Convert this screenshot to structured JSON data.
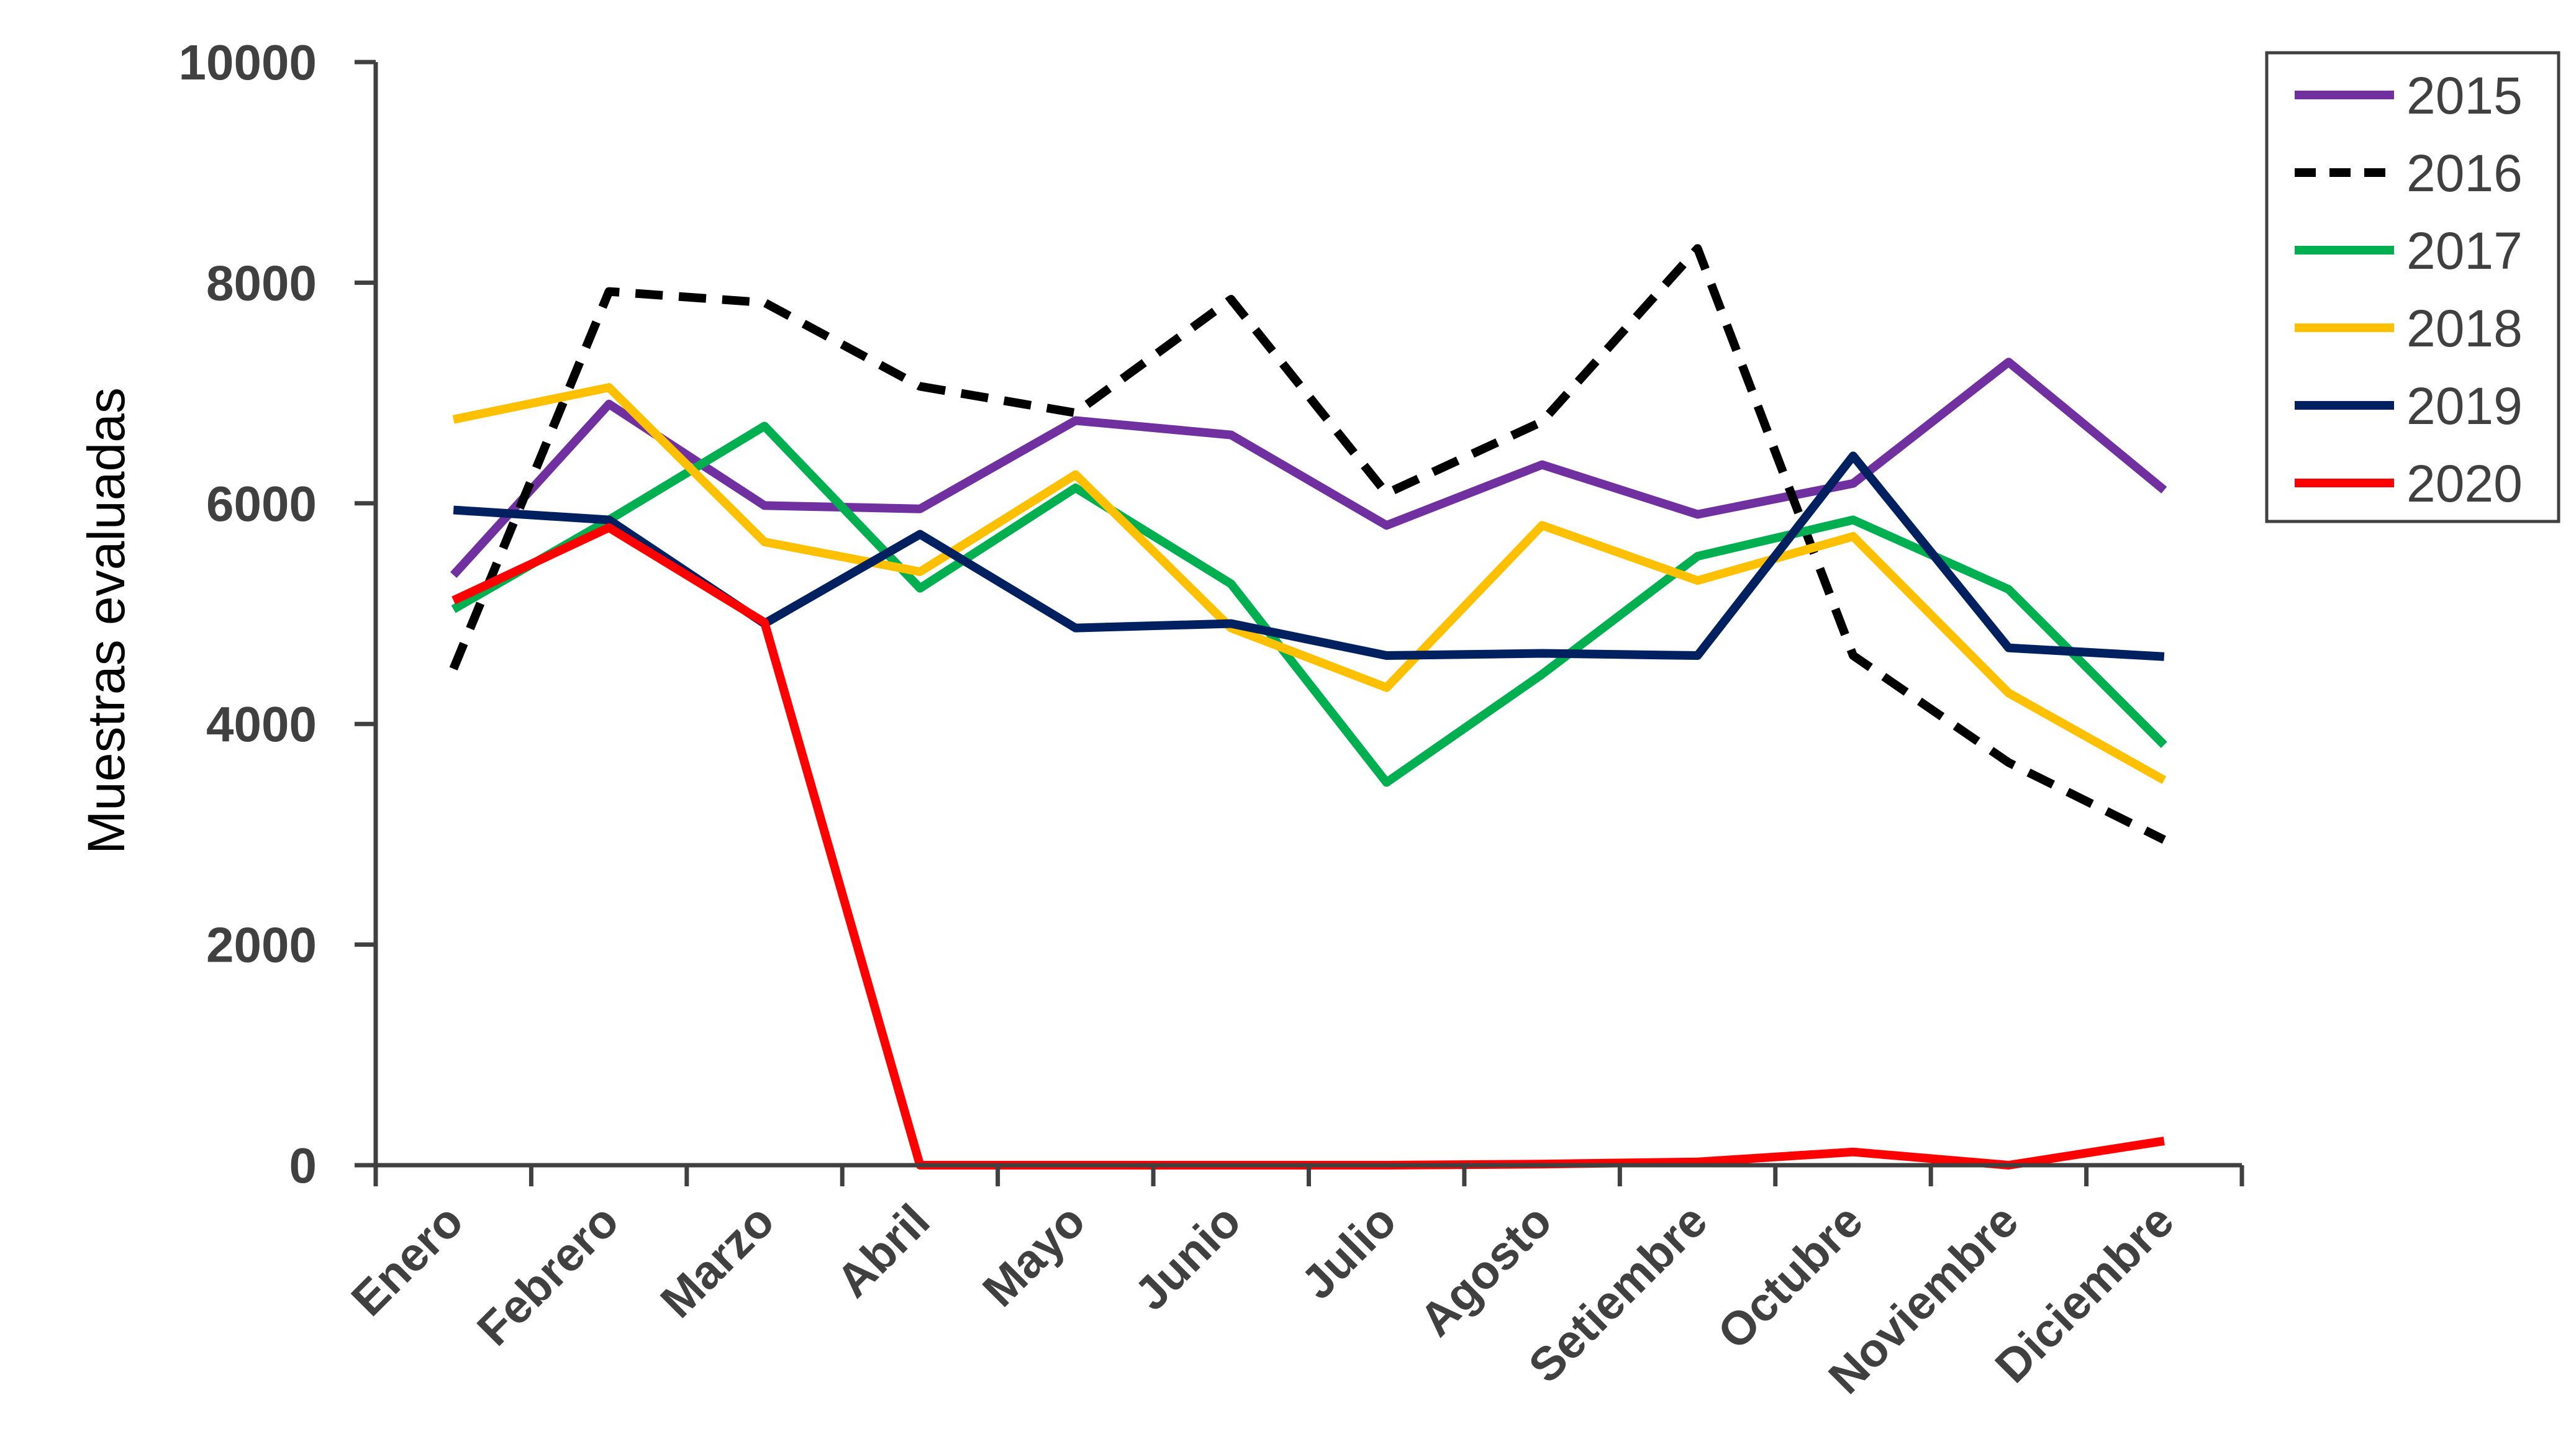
{
  "chart_data": {
    "type": "line",
    "title": "",
    "xlabel": "",
    "ylabel": "Muestras evaluadas",
    "ylim": [
      0,
      10000
    ],
    "yticks": [
      "0",
      "2000",
      "4000",
      "6000",
      "8000",
      "10000"
    ],
    "categories": [
      "Enero",
      "Febrero",
      "Marzo",
      "Abril",
      "Mayo",
      "Junio",
      "Julio",
      "Agosto",
      "Setiembre",
      "Octubre",
      "Noviembre",
      "Diciembre"
    ],
    "legend_position": "top-right",
    "grid": false,
    "series": [
      {
        "name": "2015",
        "color": "#7030A0",
        "dash": false,
        "values": [
          5350,
          6900,
          5980,
          5950,
          6750,
          6620,
          5800,
          6350,
          5900,
          6180,
          7280,
          6120
        ]
      },
      {
        "name": "2016",
        "color": "#000000",
        "dash": true,
        "values": [
          4500,
          7920,
          7820,
          7060,
          6820,
          7850,
          6090,
          6740,
          8310,
          4620,
          3650,
          2950
        ]
      },
      {
        "name": "2017",
        "color": "#00B050",
        "dash": false,
        "values": [
          5040,
          5850,
          6700,
          5230,
          6140,
          5270,
          3470,
          4450,
          5520,
          5850,
          5220,
          3810
        ]
      },
      {
        "name": "2018",
        "color": "#FFC000",
        "dash": false,
        "values": [
          6760,
          7050,
          5650,
          5380,
          6260,
          4870,
          4330,
          5800,
          5300,
          5700,
          4280,
          3490
        ]
      },
      {
        "name": "2019",
        "color": "#002060",
        "dash": false,
        "values": [
          5940,
          5850,
          4910,
          5720,
          4870,
          4910,
          4620,
          4640,
          4620,
          6430,
          4690,
          4610
        ]
      },
      {
        "name": "2020",
        "color": "#FF0000",
        "dash": false,
        "values": [
          5120,
          5780,
          4920,
          0,
          0,
          0,
          0,
          10,
          30,
          120,
          0,
          220
        ]
      }
    ]
  }
}
